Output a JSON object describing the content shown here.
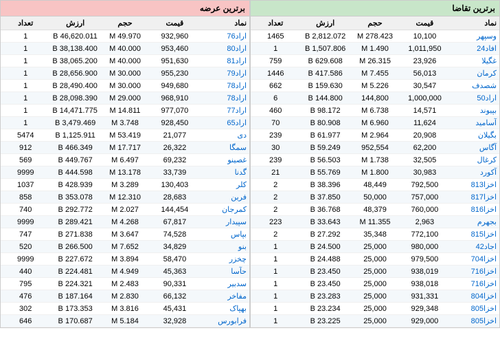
{
  "colors": {
    "demand_header_bg": "#c8e6c9",
    "supply_header_bg": "#f8c4c4",
    "link_color": "#0066cc",
    "stripe_bg": "#f4f8fb"
  },
  "demand": {
    "title": "برترین تقاضا",
    "columns": [
      "نماد",
      "قیمت",
      "حجم",
      "ارزش",
      "تعداد"
    ],
    "rows": [
      [
        "وسپهر",
        "10,100",
        "278.423 M",
        "2,812.072 B",
        "1465"
      ],
      [
        "افاد24",
        "1,011,950",
        "1.490 M",
        "1,507.806 B",
        "1"
      ],
      [
        "غگیلا",
        "23,926",
        "26.315 M",
        "629.608 B",
        "759"
      ],
      [
        "کرمان",
        "56,013",
        "7.455 M",
        "417.586 B",
        "1446"
      ],
      [
        "شصدف",
        "30,547",
        "5.226 M",
        "159.630 B",
        "662"
      ],
      [
        "اراد50",
        "1,000,000",
        "144,800",
        "144.800 B",
        "6"
      ],
      [
        "بپیوند",
        "14,571",
        "6.738 M",
        "98.172 B",
        "460"
      ],
      [
        "آسامید",
        "11,624",
        "6.960 M",
        "80.908 B",
        "70"
      ],
      [
        "بگیلان",
        "20,908",
        "2.964 M",
        "61.977 B",
        "239"
      ],
      [
        "آگاس",
        "62,200",
        "952,554",
        "59.249 B",
        "30"
      ],
      [
        "کرغال",
        "32,505",
        "1.738 M",
        "56.503 B",
        "239"
      ],
      [
        "آکورد",
        "30,983",
        "1.800 M",
        "55.769 B",
        "21"
      ],
      [
        "اخزا813",
        "792,500",
        "48,449",
        "38.396 B",
        "2"
      ],
      [
        "اخزا817",
        "757,000",
        "50,000",
        "37.850 B",
        "2"
      ],
      [
        "اخزا816",
        "760,000",
        "48,379",
        "36.768 B",
        "2"
      ],
      [
        "بجهرم",
        "2,963",
        "11.355 M",
        "33.643 B",
        "223"
      ],
      [
        "اخزا815",
        "772,100",
        "35,348",
        "27.292 B",
        "2"
      ],
      [
        "اجاد42",
        "980,000",
        "25,000",
        "24.500 B",
        "1"
      ],
      [
        "اخزا704",
        "979,500",
        "25,000",
        "24.488 B",
        "1"
      ],
      [
        "اخزا716",
        "938,019",
        "25,000",
        "23.450 B",
        "1"
      ],
      [
        "اخزا716",
        "938,018",
        "25,000",
        "23.450 B",
        "1"
      ],
      [
        "اخزا804",
        "931,331",
        "25,000",
        "23.283 B",
        "1"
      ],
      [
        "اخزا805",
        "929,348",
        "25,000",
        "23.234 B",
        "1"
      ],
      [
        "اخزا805",
        "929,000",
        "25,000",
        "23.225 B",
        "1"
      ]
    ]
  },
  "supply": {
    "title": "برترین عرضه",
    "columns": [
      "نماد",
      "قیمت",
      "حجم",
      "ارزش",
      "تعداد"
    ],
    "rows": [
      [
        "اراد76",
        "932,960",
        "49.970 M",
        "46,620.011 B",
        "1"
      ],
      [
        "اراد80",
        "953,460",
        "40.000 M",
        "38,138.400 B",
        "1"
      ],
      [
        "اراد81",
        "951,630",
        "40.000 M",
        "38,065.200 B",
        "1"
      ],
      [
        "اراد79",
        "955,230",
        "30.000 M",
        "28,656.900 B",
        "1"
      ],
      [
        "اراد78",
        "949,680",
        "30.000 M",
        "28,490.400 B",
        "1"
      ],
      [
        "اراد78",
        "968,910",
        "29.000 M",
        "28,098.390 B",
        "1"
      ],
      [
        "اراد77",
        "977,070",
        "14.811 M",
        "14,471.775 B",
        "1"
      ],
      [
        "اراد65",
        "928,450",
        "3.748 M",
        "3,479.469 B",
        "1"
      ],
      [
        "دی",
        "21,077",
        "53.419 M",
        "1,125.911 B",
        "5474"
      ],
      [
        "سمگا",
        "26,322",
        "17.717 M",
        "466.349 B",
        "912"
      ],
      [
        "غصینو",
        "69,232",
        "6.497 M",
        "449.767 B",
        "569"
      ],
      [
        "گدنا",
        "33,739",
        "13.178 M",
        "444.598 B",
        "9999"
      ],
      [
        "کلر",
        "130,403",
        "3.289 M",
        "428.939 B",
        "1037"
      ],
      [
        "فرین",
        "28,683",
        "12.310 M",
        "353.078 B",
        "858"
      ],
      [
        "کمرجان",
        "144,454",
        "2.027 M",
        "292.772 B",
        "740"
      ],
      [
        "سپیدار",
        "67,817",
        "4.268 M",
        "289.421 B",
        "9999"
      ],
      [
        "بپاس",
        "74,528",
        "3.647 M",
        "271.838 B",
        "747"
      ],
      [
        "بنو",
        "34,829",
        "7.652 M",
        "266.500 B",
        "520"
      ],
      [
        "چخزر",
        "58,470",
        "3.894 M",
        "227.672 B",
        "9999"
      ],
      [
        "حآسا",
        "45,363",
        "4.949 M",
        "224.481 B",
        "440"
      ],
      [
        "سدبیر",
        "90,331",
        "2.483 M",
        "224.321 B",
        "795"
      ],
      [
        "مفاخر",
        "66,132",
        "2.830 M",
        "187.164 B",
        "476"
      ],
      [
        "بهپاک",
        "45,431",
        "3.816 M",
        "173.353 B",
        "302"
      ],
      [
        "فرابورس",
        "32,928",
        "5.184 M",
        "170.687 B",
        "646"
      ]
    ]
  }
}
